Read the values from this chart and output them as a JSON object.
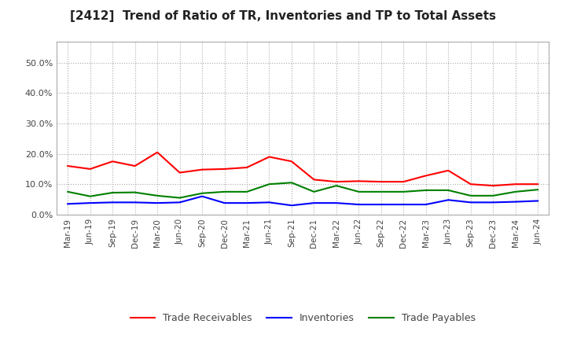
{
  "title": "[2412]  Trend of Ratio of TR, Inventories and TP to Total Assets",
  "labels": [
    "Mar-19",
    "Jun-19",
    "Sep-19",
    "Dec-19",
    "Mar-20",
    "Jun-20",
    "Sep-20",
    "Dec-20",
    "Mar-21",
    "Jun-21",
    "Sep-21",
    "Dec-21",
    "Mar-22",
    "Jun-22",
    "Sep-22",
    "Dec-22",
    "Mar-23",
    "Jun-23",
    "Sep-23",
    "Dec-23",
    "Mar-24",
    "Jun-24"
  ],
  "trade_receivables": [
    0.16,
    0.15,
    0.175,
    0.16,
    0.205,
    0.138,
    0.148,
    0.15,
    0.155,
    0.19,
    0.175,
    0.115,
    0.108,
    0.11,
    0.108,
    0.108,
    0.128,
    0.145,
    0.1,
    0.095,
    0.1,
    0.1
  ],
  "inventories": [
    0.035,
    0.038,
    0.04,
    0.04,
    0.038,
    0.04,
    0.06,
    0.038,
    0.038,
    0.04,
    0.03,
    0.038,
    0.038,
    0.033,
    0.033,
    0.033,
    0.033,
    0.048,
    0.04,
    0.04,
    0.042,
    0.045
  ],
  "trade_payables": [
    0.075,
    0.06,
    0.072,
    0.073,
    0.062,
    0.055,
    0.07,
    0.075,
    0.075,
    0.1,
    0.105,
    0.075,
    0.095,
    0.075,
    0.075,
    0.075,
    0.08,
    0.08,
    0.062,
    0.062,
    0.075,
    0.082
  ],
  "tr_color": "#FF0000",
  "inv_color": "#0000FF",
  "tp_color": "#008000",
  "ylim": [
    0.0,
    0.57
  ],
  "yticks": [
    0.0,
    0.1,
    0.2,
    0.3,
    0.4,
    0.5
  ],
  "background_color": "#ffffff",
  "grid_color": "#aaaaaa",
  "legend_labels": [
    "Trade Receivables",
    "Inventories",
    "Trade Payables"
  ]
}
